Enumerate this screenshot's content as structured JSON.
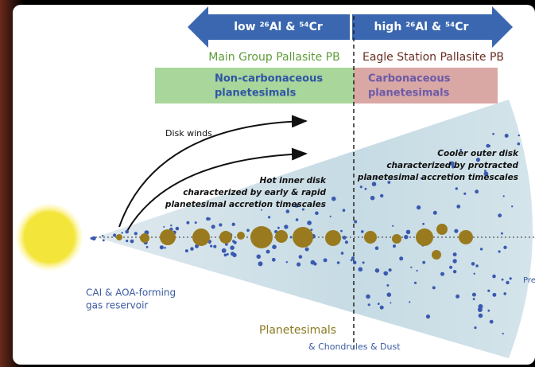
{
  "arrows": {
    "left": "low ²⁶Al & ⁵⁴Cr",
    "right": "high ²⁶Al & ⁵⁴Cr"
  },
  "groups": {
    "left": "Main Group Pallasite PB",
    "right": "Eagle Station Pallasite PB"
  },
  "boxes": {
    "left": [
      "Non-carbonaceous",
      "planetesimals"
    ],
    "right": [
      "Carbonaceous",
      "planetesimals"
    ]
  },
  "labels": {
    "disk_winds": "Disk winds",
    "inner_disk": [
      "Hot inner disk",
      "characterized by early & rapid",
      "planetesimal accretion timescales"
    ],
    "outer_disk": [
      "Cooler outer disk",
      "characterized by protracted",
      "planetesimal accretion timescales"
    ],
    "reservoir": [
      "CAI & AOA-forming",
      "gas reservoir"
    ],
    "planetesimals": "Planetesimals",
    "chondrules": "& Chondrules & Dust",
    "cutoff": "Pre"
  }
}
